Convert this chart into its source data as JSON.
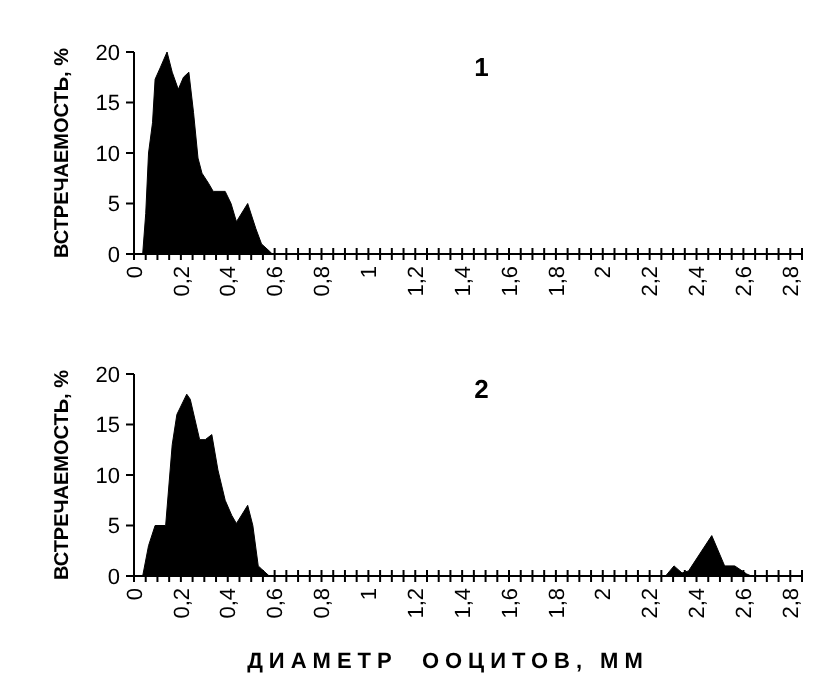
{
  "chart_data": [
    {
      "type": "area",
      "title": "1",
      "ylabel": "ВСТРЕЧАЕМОСТЬ, %",
      "xlim": [
        0,
        2.85
      ],
      "ylim": [
        0,
        20
      ],
      "yticks": [
        0,
        5,
        10,
        15,
        20
      ],
      "xticks": [
        0,
        {
          "value": 0.05,
          "label": null
        },
        {
          "value": 0.1,
          "label": null
        },
        {
          "value": 0.15,
          "label": null
        },
        {
          "value": 0.2,
          "label": "0,2"
        },
        {
          "value": 0.25,
          "label": null
        },
        {
          "value": 0.3,
          "label": null
        },
        {
          "value": 0.35,
          "label": null
        },
        {
          "value": 0.4,
          "label": "0,4"
        },
        {
          "value": 0.45,
          "label": null
        },
        {
          "value": 0.5,
          "label": null
        },
        {
          "value": 0.55,
          "label": null
        },
        {
          "value": 0.6,
          "label": "0,6"
        },
        {
          "value": 0.65,
          "label": null
        },
        {
          "value": 0.7,
          "label": null
        },
        {
          "value": 0.75,
          "label": null
        },
        {
          "value": 0.8,
          "label": "0,8"
        },
        {
          "value": 0.85,
          "label": null
        },
        {
          "value": 0.9,
          "label": null
        },
        {
          "value": 0.95,
          "label": null
        },
        1,
        {
          "value": 1.05,
          "label": null
        },
        {
          "value": 1.1,
          "label": null
        },
        {
          "value": 1.15,
          "label": null
        },
        {
          "value": 1.2,
          "label": "1,2"
        },
        {
          "value": 1.25,
          "label": null
        },
        {
          "value": 1.3,
          "label": null
        },
        {
          "value": 1.35,
          "label": null
        },
        {
          "value": 1.4,
          "label": "1,4"
        },
        {
          "value": 1.45,
          "label": null
        },
        {
          "value": 1.5,
          "label": null
        },
        {
          "value": 1.55,
          "label": null
        },
        {
          "value": 1.6,
          "label": "1,6"
        },
        {
          "value": 1.65,
          "label": null
        },
        {
          "value": 1.7,
          "label": null
        },
        {
          "value": 1.75,
          "label": null
        },
        {
          "value": 1.8,
          "label": "1,8"
        },
        {
          "value": 1.85,
          "label": null
        },
        {
          "value": 1.9,
          "label": null
        },
        {
          "value": 1.95,
          "label": null
        },
        2,
        {
          "value": 2.05,
          "label": null
        },
        {
          "value": 2.1,
          "label": null
        },
        {
          "value": 2.15,
          "label": null
        },
        {
          "value": 2.2,
          "label": "2,2"
        },
        {
          "value": 2.25,
          "label": null
        },
        {
          "value": 2.3,
          "label": null
        },
        {
          "value": 2.35,
          "label": null
        },
        {
          "value": 2.4,
          "label": "2,4"
        },
        {
          "value": 2.45,
          "label": null
        },
        {
          "value": 2.5,
          "label": null
        },
        {
          "value": 2.55,
          "label": null
        },
        {
          "value": 2.6,
          "label": "2,6"
        },
        {
          "value": 2.65,
          "label": null
        },
        {
          "value": 2.7,
          "label": null
        },
        {
          "value": 2.75,
          "label": null
        },
        {
          "value": 2.8,
          "label": "2,8"
        },
        {
          "value": 2.85,
          "label": null
        }
      ],
      "x": [
        0.037,
        0.05,
        0.062,
        0.079,
        0.09,
        0.113,
        0.141,
        0.163,
        0.189,
        0.211,
        0.234,
        0.254,
        0.273,
        0.29,
        0.318,
        0.338,
        0.389,
        0.414,
        0.437,
        0.485,
        0.52,
        0.544,
        0.577,
        0.59
      ],
      "series": [
        {
          "color": "#000000",
          "values": [
            0,
            4,
            10,
            13,
            17.3,
            18.5,
            20,
            18,
            16.3,
            17.5,
            18,
            14,
            9.5,
            8,
            7,
            6.2,
            6.2,
            5,
            3.2,
            5,
            2.5,
            1,
            0.3,
            0
          ]
        }
      ]
    },
    {
      "type": "area",
      "title": "2",
      "ylabel": "ВСТРЕЧАЕМОСТЬ, %",
      "xlabel": "ДИАМЕТР  ООЦИТОВ, ММ",
      "xlim": [
        0,
        2.85
      ],
      "ylim": [
        0,
        20
      ],
      "yticks": [
        0,
        5,
        10,
        15,
        20
      ],
      "xticks": [
        0,
        {
          "value": 0.05,
          "label": null
        },
        {
          "value": 0.1,
          "label": null
        },
        {
          "value": 0.15,
          "label": null
        },
        {
          "value": 0.2,
          "label": "0,2"
        },
        {
          "value": 0.25,
          "label": null
        },
        {
          "value": 0.3,
          "label": null
        },
        {
          "value": 0.35,
          "label": null
        },
        {
          "value": 0.4,
          "label": "0,4"
        },
        {
          "value": 0.45,
          "label": null
        },
        {
          "value": 0.5,
          "label": null
        },
        {
          "value": 0.55,
          "label": null
        },
        {
          "value": 0.6,
          "label": "0,6"
        },
        {
          "value": 0.65,
          "label": null
        },
        {
          "value": 0.7,
          "label": null
        },
        {
          "value": 0.75,
          "label": null
        },
        {
          "value": 0.8,
          "label": "0,8"
        },
        {
          "value": 0.85,
          "label": null
        },
        {
          "value": 0.9,
          "label": null
        },
        {
          "value": 0.95,
          "label": null
        },
        1,
        {
          "value": 1.05,
          "label": null
        },
        {
          "value": 1.1,
          "label": null
        },
        {
          "value": 1.15,
          "label": null
        },
        {
          "value": 1.2,
          "label": "1,2"
        },
        {
          "value": 1.25,
          "label": null
        },
        {
          "value": 1.3,
          "label": null
        },
        {
          "value": 1.35,
          "label": null
        },
        {
          "value": 1.4,
          "label": "1,4"
        },
        {
          "value": 1.45,
          "label": null
        },
        {
          "value": 1.5,
          "label": null
        },
        {
          "value": 1.55,
          "label": null
        },
        {
          "value": 1.6,
          "label": "1,6"
        },
        {
          "value": 1.65,
          "label": null
        },
        {
          "value": 1.7,
          "label": null
        },
        {
          "value": 1.75,
          "label": null
        },
        {
          "value": 1.8,
          "label": "1,8"
        },
        {
          "value": 1.85,
          "label": null
        },
        {
          "value": 1.9,
          "label": null
        },
        {
          "value": 1.95,
          "label": null
        },
        2,
        {
          "value": 2.05,
          "label": null
        },
        {
          "value": 2.1,
          "label": null
        },
        {
          "value": 2.15,
          "label": null
        },
        {
          "value": 2.2,
          "label": "2,2"
        },
        {
          "value": 2.25,
          "label": null
        },
        {
          "value": 2.3,
          "label": null
        },
        {
          "value": 2.35,
          "label": null
        },
        {
          "value": 2.4,
          "label": "2,4"
        },
        {
          "value": 2.45,
          "label": null
        },
        {
          "value": 2.5,
          "label": null
        },
        {
          "value": 2.55,
          "label": null
        },
        {
          "value": 2.6,
          "label": "2,6"
        },
        {
          "value": 2.65,
          "label": null
        },
        {
          "value": 2.7,
          "label": null
        },
        {
          "value": 2.75,
          "label": null
        },
        {
          "value": 2.8,
          "label": "2,8"
        },
        {
          "value": 2.85,
          "label": null
        }
      ],
      "x": [
        0.037,
        0.062,
        0.09,
        0.135,
        0.163,
        0.183,
        0.225,
        0.24,
        0.28,
        0.304,
        0.332,
        0.358,
        0.389,
        0.417,
        0.437,
        0.485,
        0.507,
        0.53,
        0.544,
        0.577,
        2.268,
        2.304,
        2.338,
        2.366,
        2.465,
        2.52,
        2.563,
        2.614,
        2.634
      ],
      "series": [
        {
          "color": "#000000",
          "values": [
            0,
            3,
            5,
            5,
            13,
            16,
            18,
            17.5,
            13.5,
            13.5,
            14,
            10.5,
            7.5,
            6,
            5.2,
            7,
            5,
            1,
            0.7,
            0,
            0,
            1,
            0.3,
            0.5,
            4,
            1,
            1,
            0.2,
            0
          ]
        }
      ]
    }
  ]
}
